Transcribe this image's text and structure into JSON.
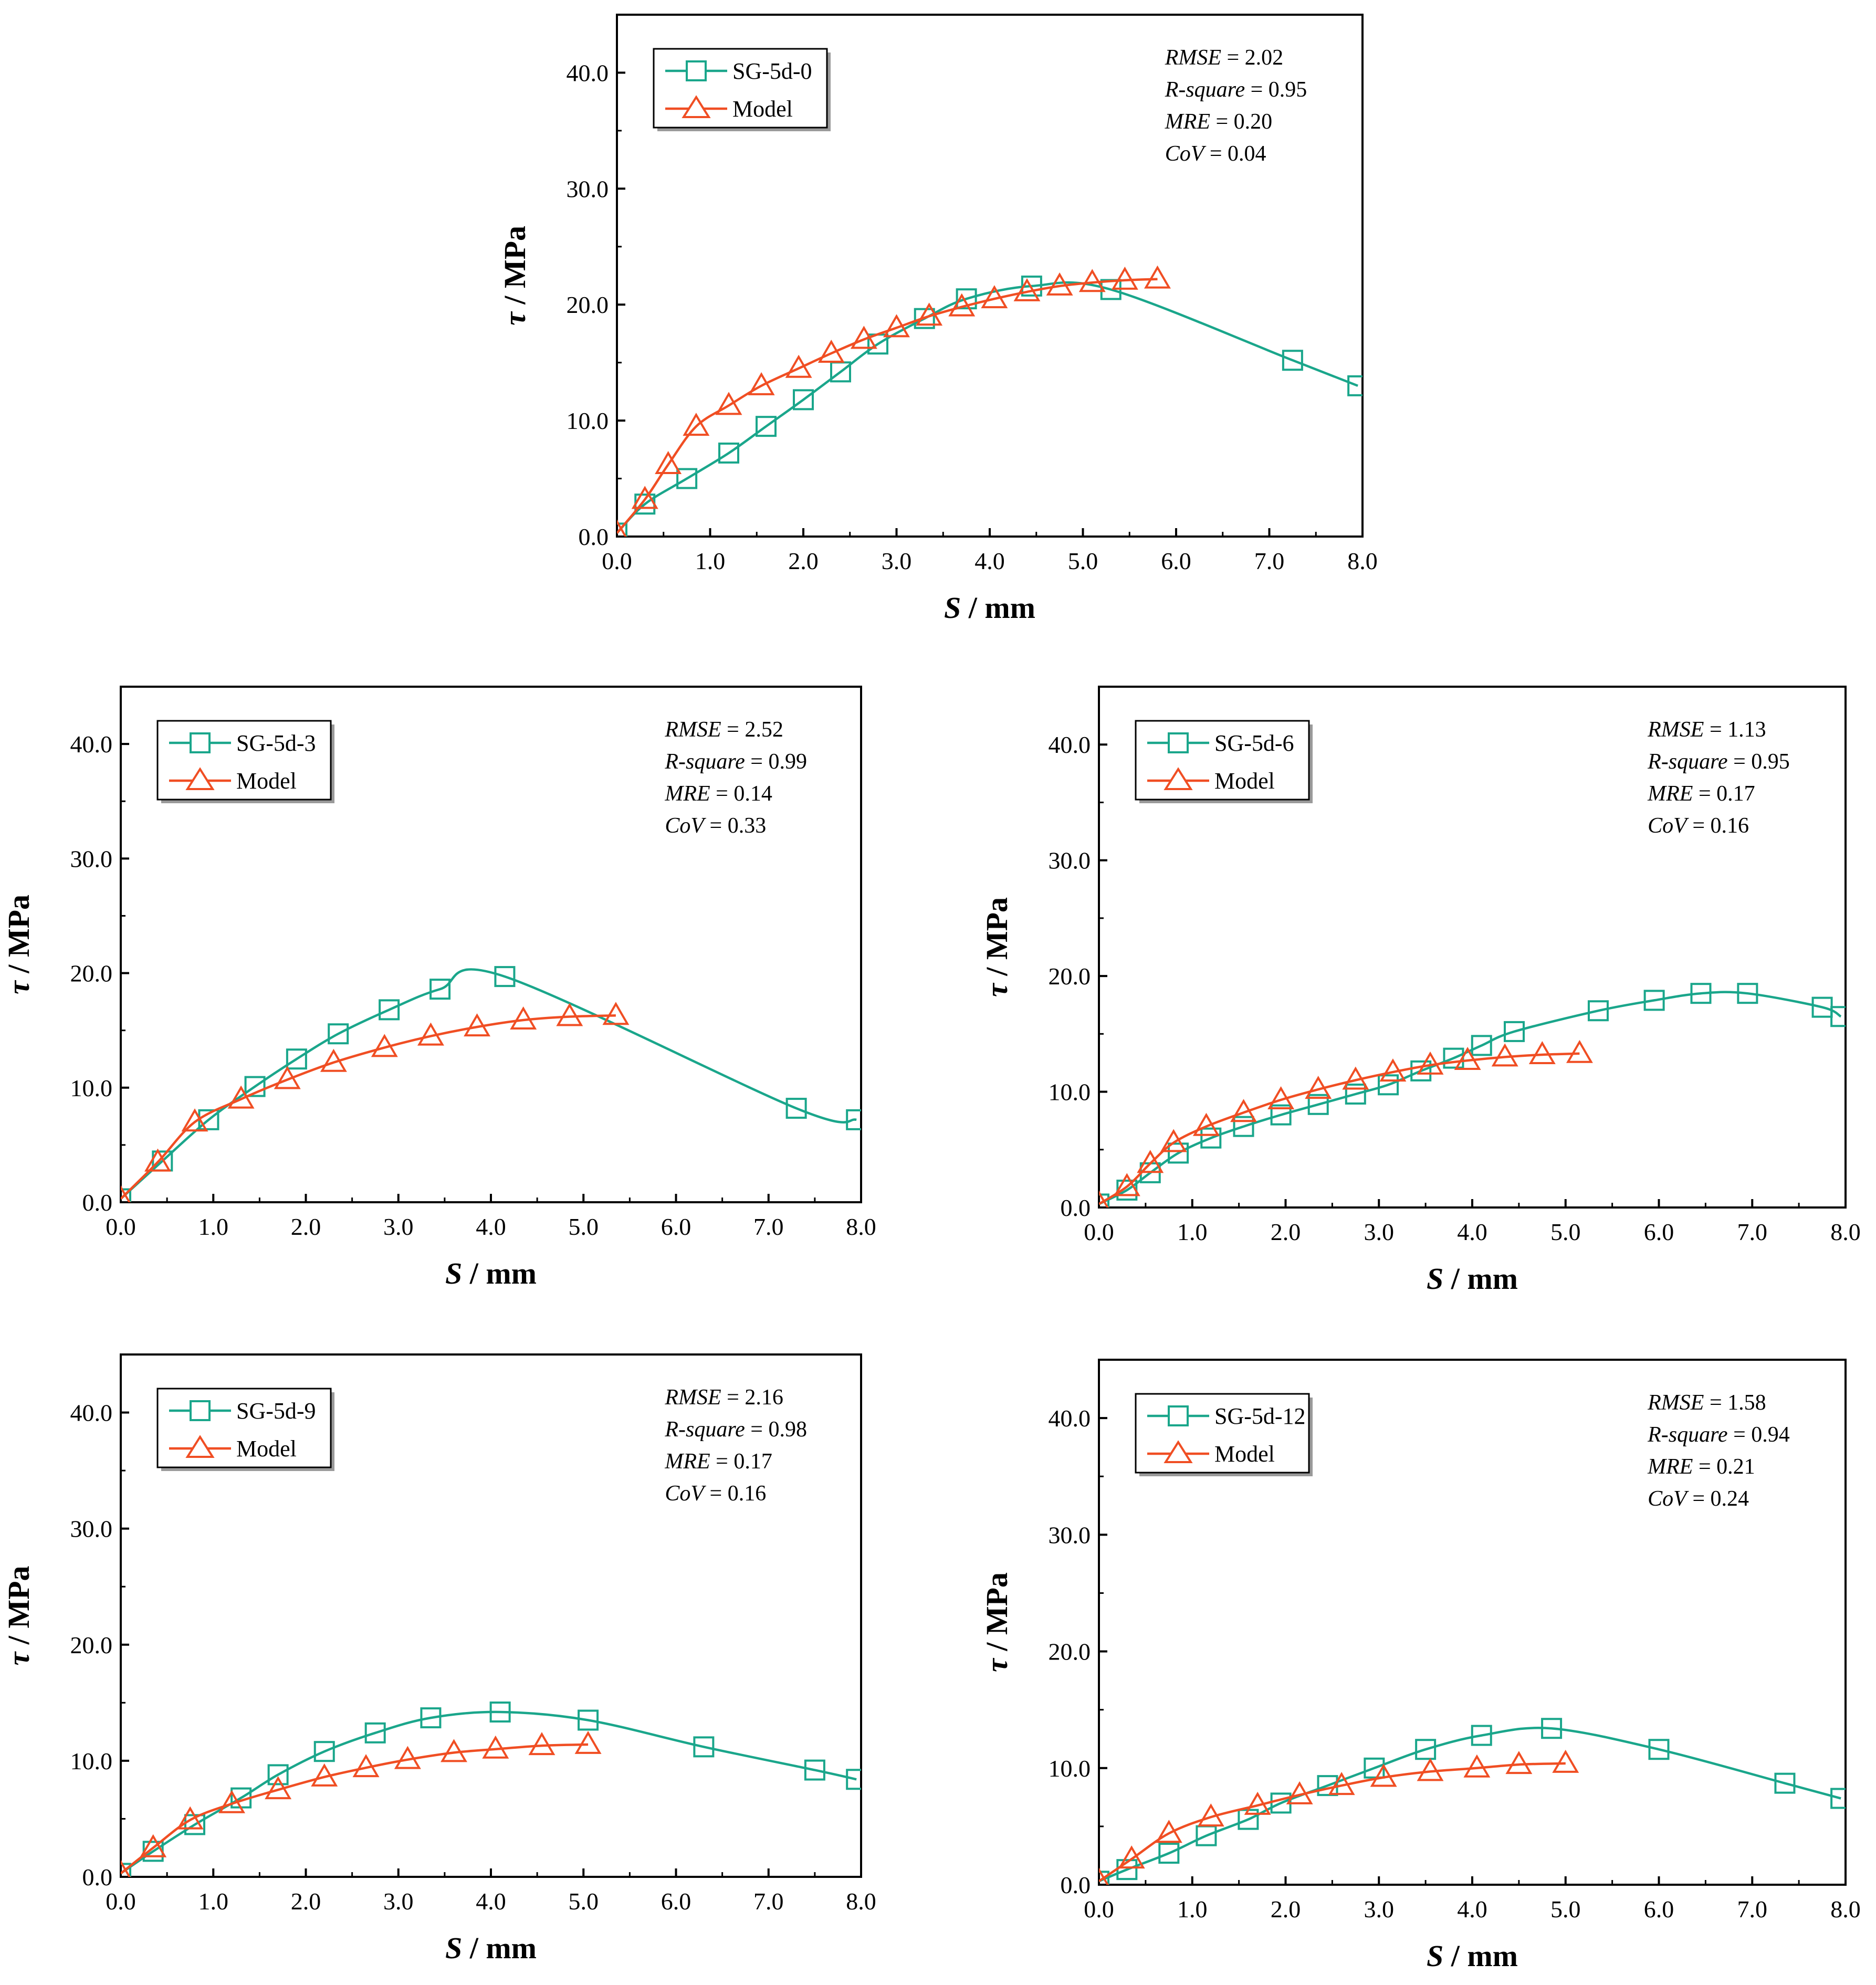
{
  "chart_data": [
    {
      "type": "line",
      "id": "sg-5d-0",
      "xlabel": "S / mm",
      "ylabel": "τ / MPa",
      "xlim": [
        0,
        8
      ],
      "ylim": [
        0,
        45
      ],
      "xticks": [
        "0.0",
        "1.0",
        "2.0",
        "3.0",
        "4.0",
        "5.0",
        "6.0",
        "7.0",
        "8.0"
      ],
      "yticks": [
        "0.0",
        "10.0",
        "20.0",
        "30.0",
        "40.0"
      ],
      "legend_position": "top-left",
      "metrics": [
        {
          "name": "RMSE",
          "value": "2.02"
        },
        {
          "name": "R-square",
          "value": "0.95"
        },
        {
          "name": "MRE",
          "value": "0.20"
        },
        {
          "name": "CoV",
          "value": "0.04"
        }
      ],
      "series": [
        {
          "name": "SG-5d-0",
          "color": "#1aa68b",
          "marker": "square",
          "x": [
            0.0,
            0.3,
            0.75,
            1.2,
            1.6,
            2.0,
            2.4,
            2.8,
            3.3,
            3.75,
            4.45,
            5.3,
            7.25,
            7.95
          ],
          "y": [
            0.3,
            2.8,
            5.0,
            7.2,
            9.5,
            11.8,
            14.2,
            16.6,
            18.8,
            20.5,
            21.6,
            21.3,
            15.2,
            13.0
          ]
        },
        {
          "name": "Model",
          "color": "#f04e23",
          "marker": "triangle",
          "x": [
            0.0,
            0.3,
            0.55,
            0.85,
            1.2,
            1.55,
            1.95,
            2.3,
            2.65,
            3.0,
            3.35,
            3.7,
            4.05,
            4.4,
            4.75,
            5.1,
            5.45,
            5.8
          ],
          "y": [
            0.3,
            3.2,
            6.2,
            9.5,
            11.3,
            13.0,
            14.5,
            15.8,
            17.0,
            18.0,
            19.0,
            19.8,
            20.5,
            21.1,
            21.6,
            21.9,
            22.1,
            22.2
          ]
        }
      ]
    },
    {
      "type": "line",
      "id": "sg-5d-3",
      "xlabel": "S / mm",
      "ylabel": "τ / MPa",
      "xlim": [
        0,
        8
      ],
      "ylim": [
        0,
        45
      ],
      "xticks": [
        "0.0",
        "1.0",
        "2.0",
        "3.0",
        "4.0",
        "5.0",
        "6.0",
        "7.0",
        "8.0"
      ],
      "yticks": [
        "0.0",
        "10.0",
        "20.0",
        "30.0",
        "40.0"
      ],
      "legend_position": "top-left",
      "metrics": [
        {
          "name": "RMSE",
          "value": "2.52"
        },
        {
          "name": "R-square",
          "value": "0.99"
        },
        {
          "name": "MRE",
          "value": "0.14"
        },
        {
          "name": "CoV",
          "value": "0.33"
        }
      ],
      "series": [
        {
          "name": "SG-5d-3",
          "color": "#1aa68b",
          "marker": "square",
          "x": [
            0.0,
            0.45,
            0.95,
            1.45,
            1.9,
            2.35,
            2.9,
            3.45,
            4.15,
            7.3,
            7.95
          ],
          "y": [
            0.3,
            3.6,
            7.2,
            10.1,
            12.5,
            14.7,
            16.8,
            18.6,
            19.7,
            8.2,
            7.2
          ]
        },
        {
          "name": "Model",
          "color": "#f04e23",
          "marker": "triangle",
          "x": [
            0.0,
            0.4,
            0.8,
            1.3,
            1.8,
            2.3,
            2.85,
            3.35,
            3.85,
            4.35,
            4.85,
            5.35
          ],
          "y": [
            0.3,
            3.5,
            7.0,
            9.0,
            10.7,
            12.2,
            13.5,
            14.5,
            15.3,
            15.9,
            16.2,
            16.3
          ]
        }
      ]
    },
    {
      "type": "line",
      "id": "sg-5d-6",
      "xlabel": "S / mm",
      "ylabel": "τ / MPa",
      "xlim": [
        0,
        8
      ],
      "ylim": [
        0,
        45
      ],
      "xticks": [
        "0.0",
        "1.0",
        "2.0",
        "3.0",
        "4.0",
        "5.0",
        "6.0",
        "7.0",
        "8.0"
      ],
      "yticks": [
        "0.0",
        "10.0",
        "20.0",
        "30.0",
        "40.0"
      ],
      "legend_position": "top-left",
      "metrics": [
        {
          "name": "RMSE",
          "value": "1.13"
        },
        {
          "name": "R-square",
          "value": "0.95"
        },
        {
          "name": "MRE",
          "value": "0.17"
        },
        {
          "name": "CoV",
          "value": "0.16"
        }
      ],
      "series": [
        {
          "name": "SG-5d-6",
          "color": "#1aa68b",
          "marker": "square",
          "x": [
            0.0,
            0.3,
            0.55,
            0.85,
            1.2,
            1.55,
            1.95,
            2.35,
            2.75,
            3.1,
            3.45,
            3.8,
            4.1,
            4.45,
            5.35,
            5.95,
            6.45,
            6.95,
            7.75,
            7.95
          ],
          "y": [
            0.3,
            1.5,
            3.0,
            4.7,
            6.0,
            7.0,
            8.0,
            8.9,
            9.8,
            10.6,
            11.8,
            12.9,
            14.0,
            15.2,
            17.0,
            17.9,
            18.5,
            18.5,
            17.3,
            16.5
          ]
        },
        {
          "name": "Model",
          "color": "#f04e23",
          "marker": "triangle",
          "x": [
            0.0,
            0.3,
            0.55,
            0.8,
            1.15,
            1.55,
            1.95,
            2.35,
            2.75,
            3.15,
            3.55,
            3.95,
            4.35,
            4.75,
            5.15
          ],
          "y": [
            0.3,
            1.8,
            3.8,
            5.6,
            7.0,
            8.2,
            9.3,
            10.2,
            11.0,
            11.7,
            12.3,
            12.7,
            13.0,
            13.2,
            13.3
          ]
        }
      ]
    },
    {
      "type": "line",
      "id": "sg-5d-9",
      "xlabel": "S / mm",
      "ylabel": "τ / MPa",
      "xlim": [
        0,
        8
      ],
      "ylim": [
        0,
        45
      ],
      "xticks": [
        "0.0",
        "1.0",
        "2.0",
        "3.0",
        "4.0",
        "5.0",
        "6.0",
        "7.0",
        "8.0"
      ],
      "yticks": [
        "0.0",
        "10.0",
        "20.0",
        "30.0",
        "40.0"
      ],
      "legend_position": "top-left",
      "metrics": [
        {
          "name": "RMSE",
          "value": "2.16"
        },
        {
          "name": "R-square",
          "value": "0.98"
        },
        {
          "name": "MRE",
          "value": "0.17"
        },
        {
          "name": "CoV",
          "value": "0.16"
        }
      ],
      "series": [
        {
          "name": "SG-5d-9",
          "color": "#1aa68b",
          "marker": "square",
          "x": [
            0.0,
            0.35,
            0.8,
            1.3,
            1.7,
            2.2,
            2.75,
            3.35,
            4.1,
            5.05,
            6.3,
            7.5,
            7.95
          ],
          "y": [
            0.3,
            2.2,
            4.5,
            6.8,
            8.8,
            10.8,
            12.4,
            13.7,
            14.2,
            13.5,
            11.2,
            9.2,
            8.4
          ]
        },
        {
          "name": "Model",
          "color": "#f04e23",
          "marker": "triangle",
          "x": [
            0.0,
            0.35,
            0.75,
            1.2,
            1.7,
            2.2,
            2.65,
            3.1,
            3.6,
            4.05,
            4.55,
            5.05
          ],
          "y": [
            0.3,
            2.5,
            4.9,
            6.3,
            7.5,
            8.6,
            9.4,
            10.1,
            10.7,
            11.0,
            11.3,
            11.4
          ]
        }
      ]
    },
    {
      "type": "line",
      "id": "sg-5d-12",
      "xlabel": "S / mm",
      "ylabel": "τ / MPa",
      "xlim": [
        0,
        8
      ],
      "ylim": [
        0,
        45
      ],
      "xticks": [
        "0.0",
        "1.0",
        "2.0",
        "3.0",
        "4.0",
        "5.0",
        "6.0",
        "7.0",
        "8.0"
      ],
      "yticks": [
        "0.0",
        "10.0",
        "20.0",
        "30.0",
        "40.0"
      ],
      "legend_position": "top-left",
      "metrics": [
        {
          "name": "RMSE",
          "value": "1.58"
        },
        {
          "name": "R-square",
          "value": "0.94"
        },
        {
          "name": "MRE",
          "value": "0.21"
        },
        {
          "name": "CoV",
          "value": "0.24"
        }
      ],
      "series": [
        {
          "name": "SG-5d-12",
          "color": "#1aa68b",
          "marker": "square",
          "x": [
            0.0,
            0.3,
            0.75,
            1.15,
            1.6,
            1.95,
            2.45,
            2.95,
            3.5,
            4.1,
            4.85,
            6.0,
            7.35,
            7.95
          ],
          "y": [
            0.3,
            1.3,
            2.7,
            4.2,
            5.6,
            7.0,
            8.5,
            10.0,
            11.6,
            12.8,
            13.4,
            11.6,
            8.7,
            7.4
          ]
        },
        {
          "name": "Model",
          "color": "#f04e23",
          "marker": "triangle",
          "x": [
            0.0,
            0.35,
            0.75,
            1.2,
            1.7,
            2.15,
            2.6,
            3.05,
            3.55,
            4.05,
            4.5,
            5.0
          ],
          "y": [
            0.3,
            2.2,
            4.4,
            5.8,
            6.8,
            7.7,
            8.5,
            9.2,
            9.7,
            10.0,
            10.3,
            10.4
          ]
        }
      ]
    }
  ]
}
